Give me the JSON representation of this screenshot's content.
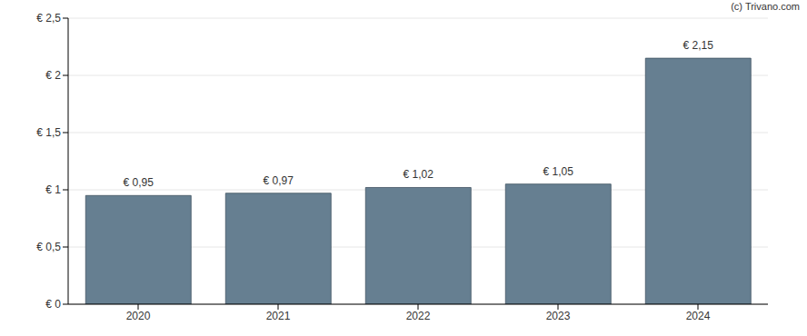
{
  "chart_data": {
    "type": "bar",
    "annotations": [
      "(c) Trivano.com"
    ],
    "categories": [
      "2020",
      "2021",
      "2022",
      "2023",
      "2024"
    ],
    "values": [
      0.95,
      0.97,
      1.02,
      1.05,
      2.15
    ],
    "value_labels": [
      "€ 0,95",
      "€ 0,97",
      "€ 1,02",
      "€ 1,05",
      "€ 2,15"
    ],
    "data_labels": true,
    "color": "#667f91",
    "ylim": [
      0,
      2.5
    ],
    "yticks": [
      {
        "value": 0,
        "label": "€ 0"
      },
      {
        "value": 0.5,
        "label": "€ 0,5"
      },
      {
        "value": 1,
        "label": "€ 1"
      },
      {
        "value": 1.5,
        "label": "€ 1,5"
      },
      {
        "value": 2,
        "label": "€ 2"
      },
      {
        "value": 2.5,
        "label": "€ 2,5"
      }
    ],
    "grid": true
  }
}
